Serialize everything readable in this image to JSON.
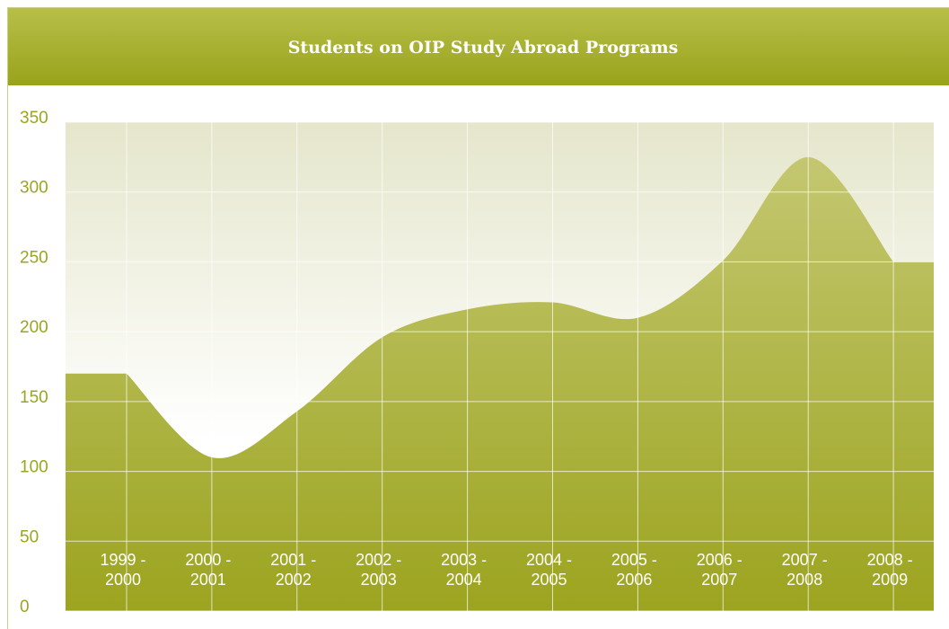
{
  "chart_data": {
    "type": "area",
    "title": "Students on OIP Study Abroad Programs",
    "categories": [
      "1999 - 2000",
      "2000 - 2001",
      "2001 - 2002",
      "2002 - 2003",
      "2003 - 2004",
      "2004 - 2005",
      "2005 - 2006",
      "2006 - 2007",
      "2007 - 2008",
      "2008 - 2009"
    ],
    "values": [
      170,
      110,
      143,
      196,
      216,
      221,
      210,
      251,
      325,
      250
    ],
    "color": "#a8ad2e",
    "ylim": [
      0,
      350
    ],
    "yticks": [
      0,
      50,
      100,
      150,
      200,
      250,
      300,
      350
    ],
    "grid": true
  }
}
